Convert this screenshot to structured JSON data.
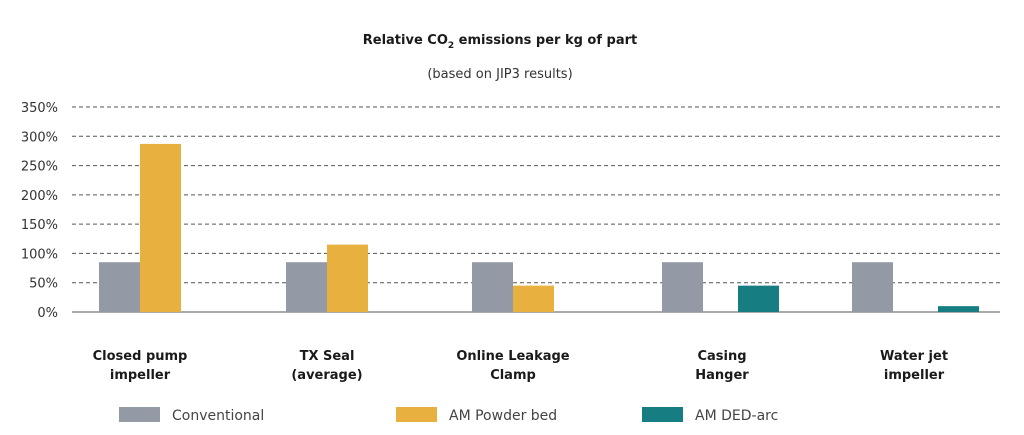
{
  "chart_data": {
    "type": "bar",
    "title_main": "Relative CO",
    "title_sub": "2",
    "title_tail": " emissions per kg of part",
    "subtitle": "(based on JIP3 results)",
    "categories": [
      [
        "Closed pump",
        "impeller"
      ],
      [
        "TX Seal",
        "(average)"
      ],
      [
        "Online Leakage",
        "Clamp"
      ],
      [
        "Casing",
        "Hanger"
      ],
      [
        "Water jet",
        "impeller"
      ]
    ],
    "yticks": [
      "0%",
      "50%",
      "100%",
      "150%",
      "200%",
      "250%",
      "300%",
      "350%"
    ],
    "ylim": [
      0,
      350
    ],
    "grid": true,
    "legend_position": "bottom",
    "series": [
      {
        "name": "Conventional",
        "color": "#9499a6",
        "values": [
          85,
          85,
          85,
          85,
          85
        ]
      },
      {
        "name": "AM Powder bed",
        "color": "#e8b03e",
        "values": [
          287,
          115,
          45,
          null,
          null
        ]
      },
      {
        "name": "AM DED-arc",
        "color": "#167e83",
        "values": [
          null,
          null,
          null,
          45,
          10
        ]
      }
    ]
  }
}
